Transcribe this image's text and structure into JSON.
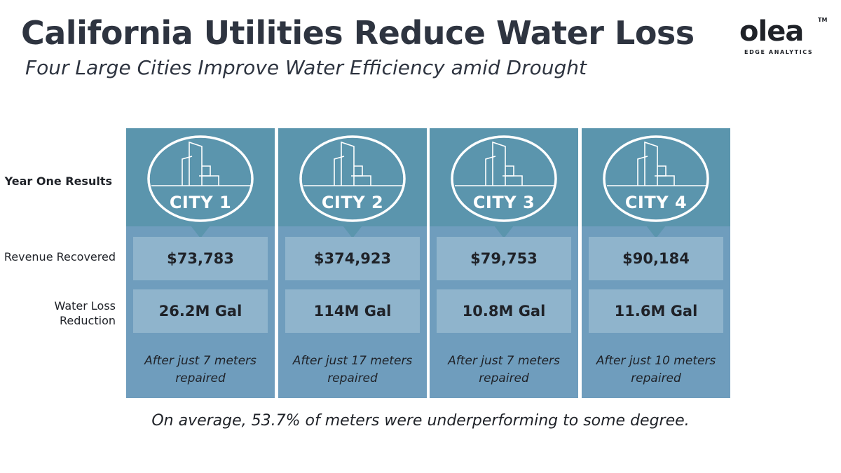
{
  "header": {
    "title": "California Utilities Reduce Water Loss",
    "subtitle": "Four Large Cities Improve Water Efficiency amid Drought"
  },
  "logo": {
    "word": "olea",
    "tm": "TM",
    "tagline": "EDGE ANALYTICS"
  },
  "row_labels": {
    "results": "Year One Results",
    "revenue": "Revenue Recovered",
    "water_loss": "Water Loss Reduction"
  },
  "cities": [
    {
      "name": "CITY 1",
      "revenue": "$73,783",
      "water_loss": "26.2M Gal",
      "note": "After just 7 meters repaired"
    },
    {
      "name": "CITY 2",
      "revenue": "$374,923",
      "water_loss": "114M Gal",
      "note": "After just 17 meters repaired"
    },
    {
      "name": "CITY 3",
      "revenue": "$79,753",
      "water_loss": "10.8M Gal",
      "note": "After just 7 meters repaired"
    },
    {
      "name": "CITY 4",
      "revenue": "$90,184",
      "water_loss": "11.6M Gal",
      "note": "After just 10 meters repaired"
    }
  ],
  "footnote": "On average, 53.7% of meters were underperforming to some degree.",
  "colors": {
    "card_top": "#5b95ad",
    "card_body": "#6f9dbd",
    "value_box": "#8fb4cc",
    "title": "#2e3440"
  }
}
